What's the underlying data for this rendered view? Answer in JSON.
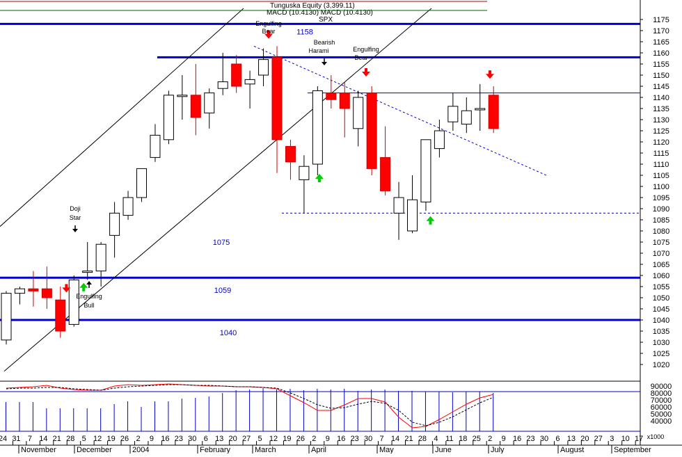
{
  "header": {
    "line1": "Tunguska Equity (3,399.11)",
    "line2": "MACD (10.4130) MACD (10.4130)",
    "symbol": "SPX"
  },
  "colors": {
    "up_fill": "#ffffff",
    "up_stroke": "#000000",
    "down_fill": "#ff0000",
    "down_stroke": "#cc0000",
    "level_line": "#0000cc",
    "level_text": "#0000cc",
    "trend_dashed": "#0000cc",
    "channel": "#000000",
    "arrow_down": "#ff0000",
    "arrow_up": "#00cc00",
    "macd_line": "#ff0000",
    "signal_line": "#000000",
    "volume": "#0000cc",
    "grid": "#000000"
  },
  "chart_data": [
    {
      "type": "candlestick",
      "title": "SPX",
      "x_labels": [
        "24",
        "31",
        "7",
        "14",
        "21",
        "28",
        "5",
        "12",
        "19",
        "26",
        "2",
        "9",
        "16",
        "23",
        "30",
        "6",
        "13",
        "20",
        "27",
        "5",
        "12",
        "19",
        "26",
        "2",
        "9",
        "16",
        "23",
        "30",
        "7",
        "14",
        "21",
        "28",
        "4",
        "11",
        "18",
        "25",
        "2",
        "9",
        "16",
        "23",
        "30",
        "6",
        "13",
        "20",
        "27",
        "3",
        "10",
        "17"
      ],
      "month_labels": [
        "November",
        "December",
        "2004",
        "February",
        "March",
        "April",
        "May",
        "June",
        "July",
        "August",
        "September"
      ],
      "ylim": [
        1015,
        1180
      ],
      "y_ticks": [
        1020,
        1025,
        1030,
        1035,
        1040,
        1045,
        1050,
        1055,
        1060,
        1065,
        1070,
        1075,
        1080,
        1085,
        1090,
        1095,
        1100,
        1105,
        1110,
        1115,
        1120,
        1125,
        1130,
        1135,
        1140,
        1145,
        1150,
        1155,
        1160,
        1165,
        1170,
        1175
      ],
      "candles": [
        {
          "date": "24",
          "open": 1031,
          "high": 1053,
          "low": 1029,
          "close": 1052
        },
        {
          "date": "31",
          "open": 1052,
          "high": 1055,
          "low": 1047,
          "close": 1054
        },
        {
          "date": "7",
          "open": 1054,
          "high": 1062,
          "low": 1046,
          "close": 1053
        },
        {
          "date": "14",
          "open": 1054,
          "high": 1064,
          "low": 1045,
          "close": 1050
        },
        {
          "date": "21",
          "open": 1049,
          "high": 1055,
          "low": 1032,
          "close": 1035
        },
        {
          "date": "28",
          "open": 1038,
          "high": 1060,
          "low": 1037,
          "close": 1058
        },
        {
          "date": "5",
          "open": 1062,
          "high": 1075,
          "low": 1058,
          "close": 1062
        },
        {
          "date": "12",
          "open": 1062,
          "high": 1075,
          "low": 1055,
          "close": 1074
        },
        {
          "date": "19",
          "open": 1078,
          "high": 1093,
          "low": 1068,
          "close": 1088
        },
        {
          "date": "26",
          "open": 1087,
          "high": 1098,
          "low": 1085,
          "close": 1095
        },
        {
          "date": "2",
          "open": 1095,
          "high": 1108,
          "low": 1093,
          "close": 1108
        },
        {
          "date": "9",
          "open": 1113,
          "high": 1128,
          "low": 1111,
          "close": 1123
        },
        {
          "date": "16",
          "open": 1121,
          "high": 1143,
          "low": 1119,
          "close": 1141
        },
        {
          "date": "23",
          "open": 1141,
          "high": 1150,
          "low": 1130,
          "close": 1141
        },
        {
          "date": "30",
          "open": 1141,
          "high": 1155,
          "low": 1123,
          "close": 1131
        },
        {
          "date": "6",
          "open": 1133,
          "high": 1144,
          "low": 1126,
          "close": 1142
        },
        {
          "date": "13",
          "open": 1144,
          "high": 1160,
          "low": 1141,
          "close": 1147
        },
        {
          "date": "20",
          "open": 1155,
          "high": 1159,
          "low": 1142,
          "close": 1145
        },
        {
          "date": "27",
          "open": 1146,
          "high": 1152,
          "low": 1135,
          "close": 1148
        },
        {
          "date": "5",
          "open": 1150,
          "high": 1162,
          "low": 1145,
          "close": 1157
        },
        {
          "date": "12",
          "open": 1158,
          "high": 1163,
          "low": 1106,
          "close": 1121
        },
        {
          "date": "19",
          "open": 1118,
          "high": 1121,
          "low": 1103,
          "close": 1111
        },
        {
          "date": "26",
          "open": 1103,
          "high": 1114,
          "low": 1088,
          "close": 1109
        },
        {
          "date": "2",
          "open": 1110,
          "high": 1145,
          "low": 1105,
          "close": 1143
        },
        {
          "date": "9",
          "open": 1142,
          "high": 1150,
          "low": 1135,
          "close": 1139
        },
        {
          "date": "16",
          "open": 1142,
          "high": 1147,
          "low": 1122,
          "close": 1135
        },
        {
          "date": "23",
          "open": 1126,
          "high": 1143,
          "low": 1118,
          "close": 1140
        },
        {
          "date": "30",
          "open": 1142,
          "high": 1145,
          "low": 1105,
          "close": 1108
        },
        {
          "date": "7",
          "open": 1113,
          "high": 1127,
          "low": 1096,
          "close": 1098
        },
        {
          "date": "14",
          "open": 1088,
          "high": 1102,
          "low": 1076,
          "close": 1095
        },
        {
          "date": "21",
          "open": 1080,
          "high": 1105,
          "low": 1079,
          "close": 1094
        },
        {
          "date": "28",
          "open": 1093,
          "high": 1121,
          "low": 1089,
          "close": 1121
        },
        {
          "date": "4",
          "open": 1117,
          "high": 1130,
          "low": 1113,
          "close": 1125
        },
        {
          "date": "11",
          "open": 1129,
          "high": 1142,
          "low": 1125,
          "close": 1136
        },
        {
          "date": "18",
          "open": 1128,
          "high": 1140,
          "low": 1124,
          "close": 1134
        },
        {
          "date": "25",
          "open": 1135,
          "high": 1146,
          "low": 1125,
          "close": 1135
        },
        {
          "date": "2",
          "open": 1141,
          "high": 1145,
          "low": 1124,
          "close": 1126
        }
      ],
      "levels": [
        {
          "value": 1173,
          "label": ""
        },
        {
          "value": 1158,
          "label": "1158"
        },
        {
          "value": 1059,
          "label": "1059"
        },
        {
          "value": 1040,
          "label": "1040"
        }
      ],
      "level_label_extra": [
        {
          "value": 1075,
          "label": "1075"
        }
      ],
      "thin_resistance": 1142,
      "dashed_support": 1088,
      "annotations": [
        {
          "text": "Doji Star",
          "date": "5",
          "price": 1084,
          "arrow": "down",
          "color": "black"
        },
        {
          "text": "Engulfing Bull",
          "date": "12",
          "price": 1053,
          "arrow": "up_text_below",
          "color": "black"
        },
        {
          "text": "Engulfing Bear",
          "date": "5",
          "price": 1163,
          "arrow": "down",
          "color": "red"
        },
        {
          "text": "Bearish Harami",
          "date": "9",
          "price": 1153,
          "arrow": "down",
          "color": "black"
        },
        {
          "text": "Engulfing Bear",
          "date": "30",
          "price": 1149,
          "arrow": "down",
          "color": "red"
        }
      ],
      "signal_arrows": [
        {
          "date": "14",
          "dir": "down",
          "color": "red"
        },
        {
          "date": "28",
          "dir": "up",
          "color": "green"
        },
        {
          "date": "26",
          "dir": "up",
          "color": "green"
        },
        {
          "date": "21",
          "dir": "up",
          "color": "green"
        },
        {
          "date": "2",
          "dir": "down",
          "color": "red"
        }
      ],
      "arrow_labels": [
        "Doji",
        "Star",
        "Engulfing",
        "Bull",
        "Engulfing",
        "Bear",
        "Bearish",
        "Harami",
        "Engulfing",
        "Bear"
      ]
    },
    {
      "type": "line",
      "title": "MACD",
      "ylim": [
        25000,
        95000
      ],
      "y_ticks": [
        40000,
        50000,
        60000,
        70000,
        80000,
        90000
      ],
      "axis_unit": "x1000",
      "series": [
        {
          "name": "MACD",
          "values": [
            87,
            88,
            89,
            91,
            87,
            85,
            84,
            84,
            90,
            92,
            91,
            92,
            93,
            92,
            91,
            90,
            90,
            89,
            89,
            88,
            86,
            76,
            66,
            55,
            55,
            63,
            72,
            72,
            67,
            45,
            30,
            32,
            42,
            53,
            64,
            73,
            78
          ]
        },
        {
          "name": "Signal",
          "values": [
            86,
            87,
            87,
            88,
            88,
            86,
            85,
            84,
            87,
            89,
            90,
            91,
            92,
            92,
            91,
            91,
            90,
            89,
            89,
            88,
            87,
            80,
            72,
            63,
            58,
            59,
            64,
            68,
            65,
            55,
            38,
            33,
            38,
            46,
            56,
            66,
            74
          ]
        }
      ],
      "volume": [
        67,
        67,
        67,
        58,
        58,
        58,
        58,
        58,
        64,
        68,
        60,
        68,
        68,
        72,
        73,
        75,
        80,
        84,
        85,
        87,
        85,
        86,
        84,
        86,
        85,
        86,
        83,
        85,
        85,
        83,
        83,
        82,
        82,
        81,
        82,
        82,
        80
      ]
    }
  ]
}
